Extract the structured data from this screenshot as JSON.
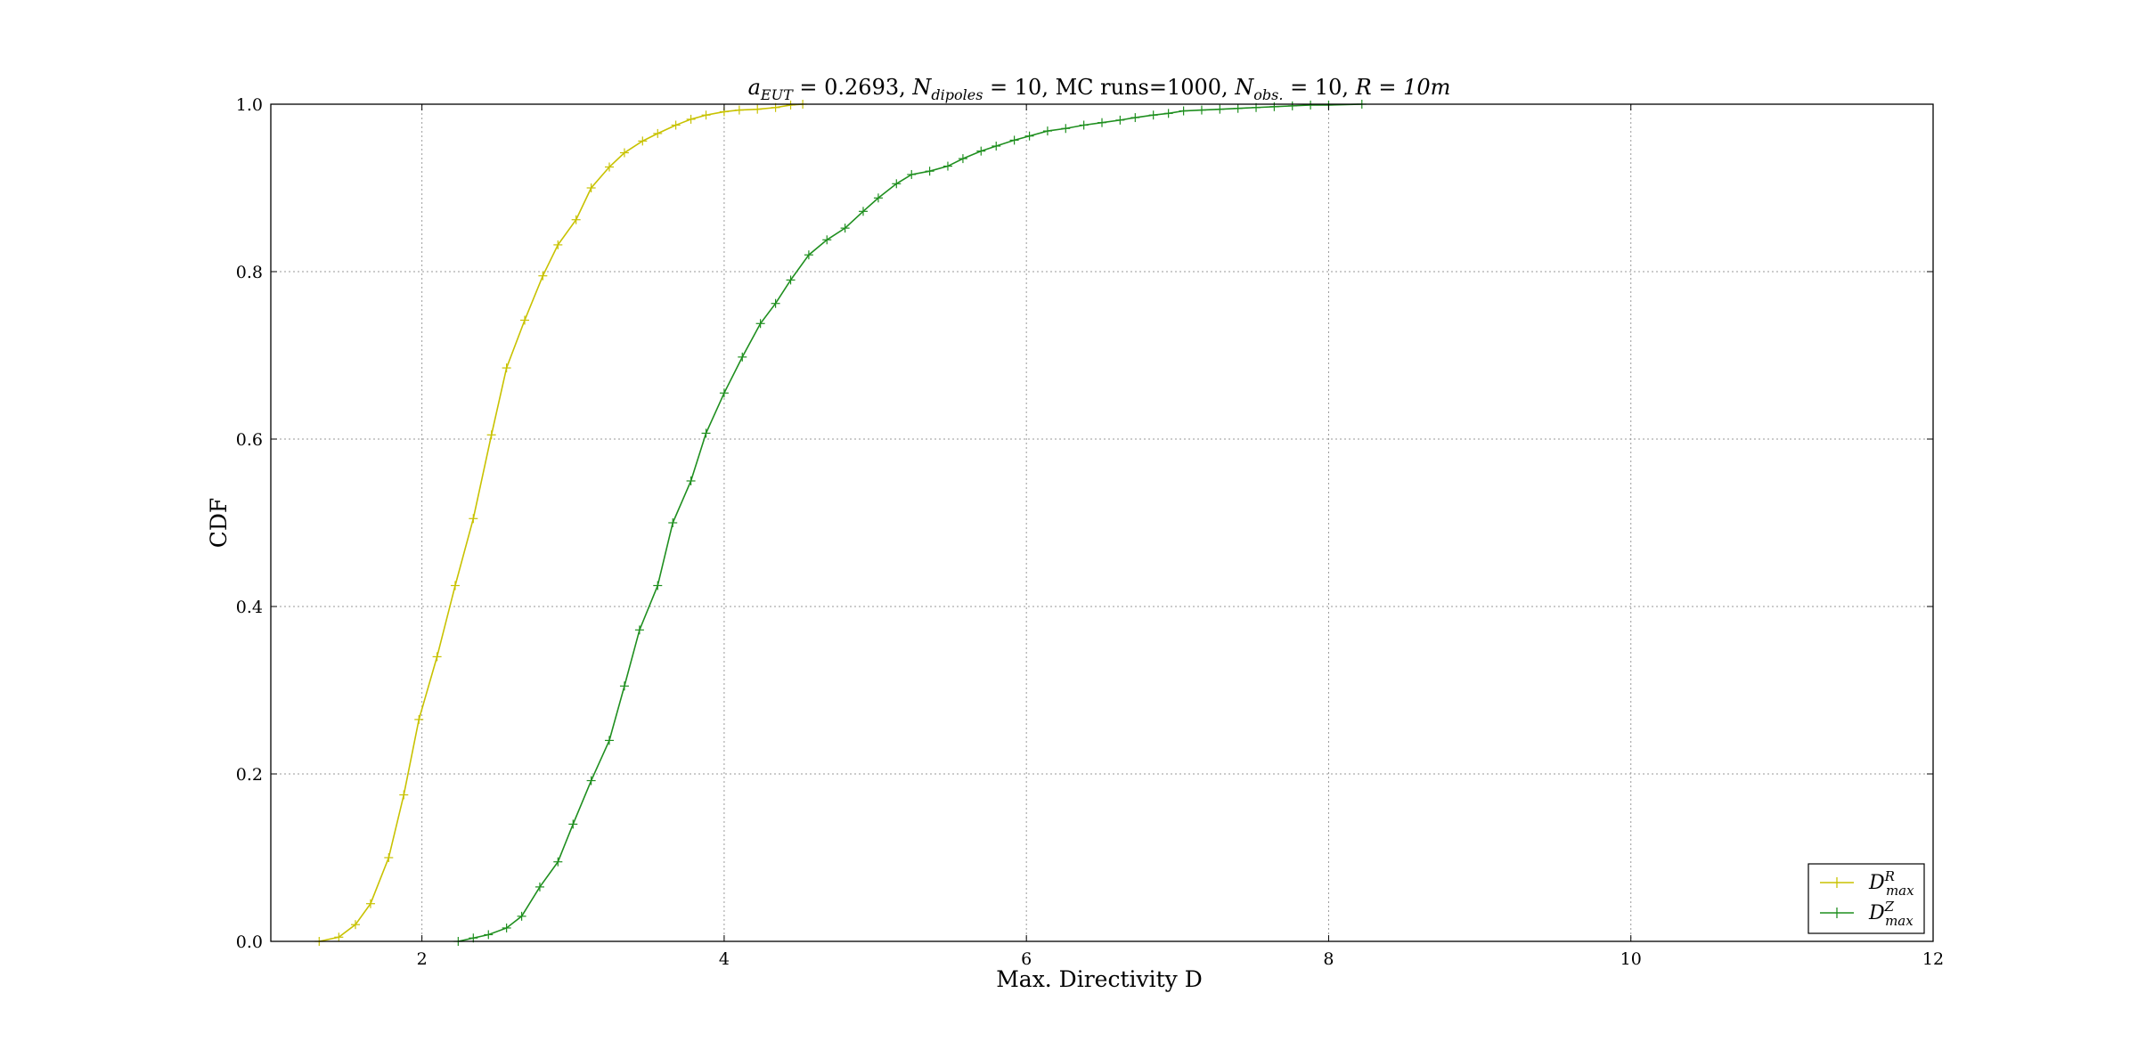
{
  "chart_data": {
    "type": "line",
    "title": "a_EUT = 0.2693, N_dipoles = 10, MC runs=1000, N_obs. = 10, R = 10m",
    "title_parts": {
      "a_symbol": "a",
      "a_sub": "EUT",
      "a_value": " = 0.2693, ",
      "n_symbol": "N",
      "n_sub": "dipoles",
      "n_value": " = 10, MC runs=1000, ",
      "nobs_symbol": "N",
      "nobs_sub": "obs.",
      "nobs_value": " = 10, ",
      "r_text": "R = 10m"
    },
    "xlabel": "Max. Directivity D",
    "ylabel": "CDF",
    "xlim": [
      1,
      12
    ],
    "ylim": [
      0,
      1
    ],
    "xticks": [
      2,
      4,
      6,
      8,
      10,
      12
    ],
    "xtick_labels": [
      "2",
      "4",
      "6",
      "8",
      "10",
      "12"
    ],
    "yticks": [
      0,
      0.2,
      0.4,
      0.6,
      0.8,
      1.0
    ],
    "ytick_labels": [
      "0.0",
      "0.2",
      "0.4",
      "0.6",
      "0.8",
      "1.0"
    ],
    "grid": true,
    "legend_placement": "lower-right",
    "series": [
      {
        "name": "D^R_max",
        "legend_base": "D",
        "legend_sup": "R",
        "legend_sub": "max",
        "color": "#c8c200",
        "marker": "+",
        "x": [
          1.32,
          1.45,
          1.56,
          1.66,
          1.78,
          1.88,
          1.98,
          2.1,
          2.22,
          2.34,
          2.46,
          2.56,
          2.68,
          2.8,
          2.9,
          3.02,
          3.12,
          3.24,
          3.34,
          3.46,
          3.56,
          3.68,
          3.78,
          3.88,
          4.0,
          4.1,
          4.22,
          4.34,
          4.44,
          4.52
        ],
        "y": [
          0.0,
          0.005,
          0.02,
          0.045,
          0.1,
          0.175,
          0.265,
          0.34,
          0.425,
          0.505,
          0.605,
          0.685,
          0.742,
          0.795,
          0.832,
          0.862,
          0.9,
          0.925,
          0.942,
          0.956,
          0.965,
          0.975,
          0.982,
          0.987,
          0.991,
          0.993,
          0.994,
          0.996,
          0.999,
          1.0
        ]
      },
      {
        "name": "D^Z_max",
        "legend_base": "D",
        "legend_sup": "Z",
        "legend_sub": "max",
        "color": "#1f8f1f",
        "marker": "+",
        "x": [
          2.24,
          2.34,
          2.44,
          2.56,
          2.66,
          2.78,
          2.9,
          3.0,
          3.12,
          3.24,
          3.34,
          3.44,
          3.56,
          3.66,
          3.78,
          3.88,
          4.0,
          4.12,
          4.24,
          4.34,
          4.44,
          4.56,
          4.68,
          4.8,
          4.92,
          5.02,
          5.14,
          5.24,
          5.36,
          5.48,
          5.58,
          5.7,
          5.8,
          5.92,
          6.02,
          6.14,
          6.26,
          6.38,
          6.5,
          6.62,
          6.72,
          6.84,
          6.94,
          7.04,
          7.16,
          7.28,
          7.4,
          7.52,
          7.64,
          7.76,
          7.88,
          8.0,
          8.22
        ],
        "y": [
          0.0,
          0.004,
          0.008,
          0.016,
          0.03,
          0.065,
          0.095,
          0.14,
          0.192,
          0.24,
          0.305,
          0.372,
          0.425,
          0.5,
          0.55,
          0.607,
          0.655,
          0.698,
          0.738,
          0.762,
          0.79,
          0.82,
          0.838,
          0.852,
          0.872,
          0.888,
          0.905,
          0.916,
          0.92,
          0.926,
          0.935,
          0.944,
          0.95,
          0.957,
          0.962,
          0.968,
          0.971,
          0.975,
          0.978,
          0.981,
          0.984,
          0.987,
          0.989,
          0.992,
          0.993,
          0.994,
          0.995,
          0.996,
          0.997,
          0.998,
          0.999,
          0.999,
          1.0
        ]
      }
    ]
  }
}
